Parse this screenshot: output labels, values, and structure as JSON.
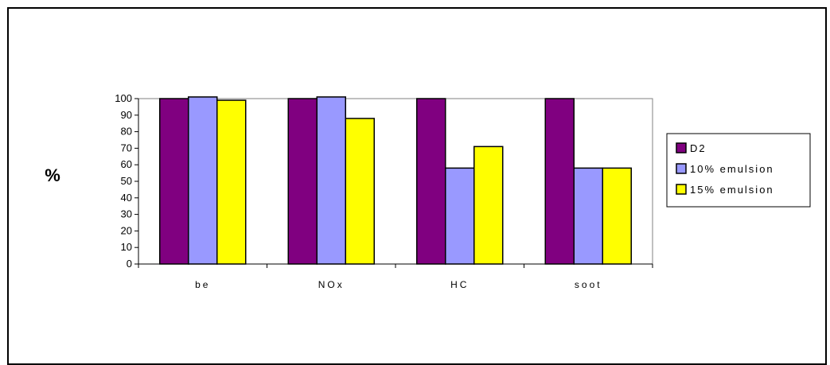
{
  "chart_data": {
    "type": "bar",
    "title": "",
    "xlabel": "",
    "ylabel": "%",
    "ylim": [
      0,
      100
    ],
    "yticks": [
      "0",
      "10",
      "20",
      "30",
      "40",
      "50",
      "60",
      "70",
      "80",
      "90",
      "100"
    ],
    "categories": [
      "be",
      "NOx",
      "HC",
      "soot"
    ],
    "series": [
      {
        "name": "D2",
        "values": [
          100,
          100,
          100,
          100
        ],
        "color": "#800080"
      },
      {
        "name": "10% emulsion",
        "values": [
          101,
          101,
          58,
          58
        ],
        "color": "#9999ff"
      },
      {
        "name": "15% emulsion",
        "values": [
          99,
          88,
          71,
          58
        ],
        "color": "#ffff00"
      }
    ],
    "legend_position": "right",
    "grid": false
  }
}
